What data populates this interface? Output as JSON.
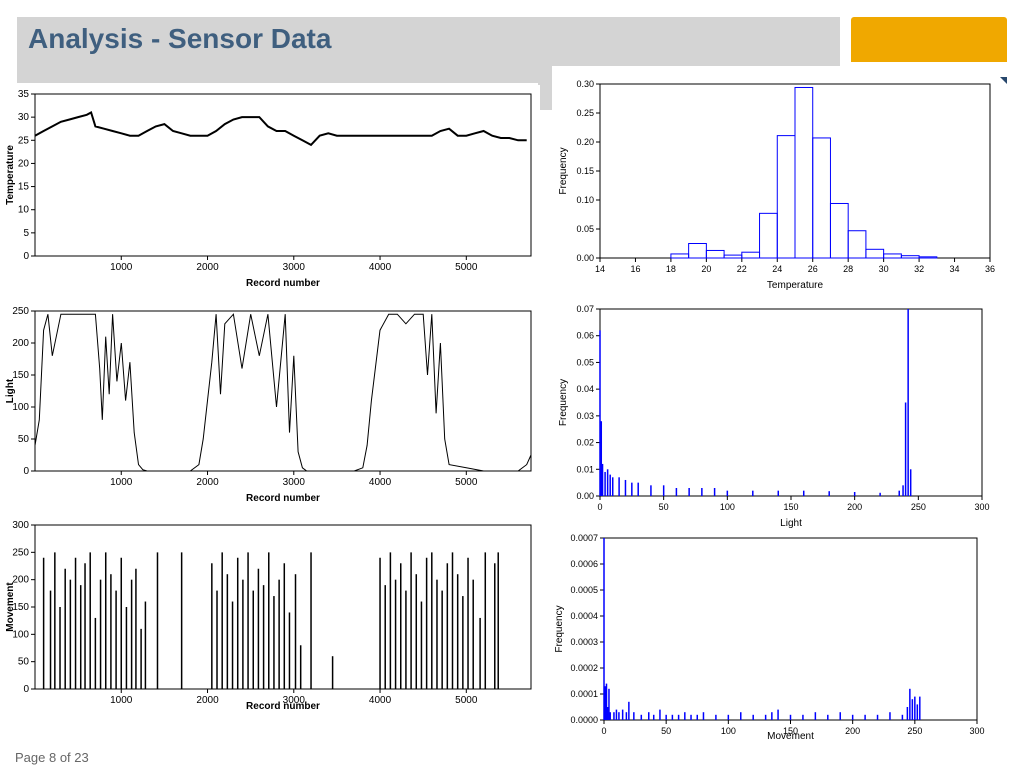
{
  "slide": {
    "title": "Analysis - Sensor Data",
    "footer": "Page 8 of 23",
    "accent_color": "#f0a800",
    "title_color": "#3f5f7f"
  },
  "chart_data": [
    {
      "type": "line",
      "xlabel": "Record number",
      "ylabel": "Temperature",
      "xlim": [
        0,
        5750
      ],
      "ylim": [
        0,
        35
      ],
      "xticks": [
        1000,
        2000,
        3000,
        4000,
        5000
      ],
      "yticks": [
        0,
        5,
        10,
        15,
        20,
        25,
        30,
        35
      ],
      "series": [
        {
          "color": "#000000",
          "x": [
            0,
            100,
            200,
            300,
            400,
            500,
            600,
            650,
            700,
            800,
            900,
            1000,
            1100,
            1200,
            1300,
            1400,
            1500,
            1600,
            1700,
            1800,
            1900,
            2000,
            2100,
            2200,
            2300,
            2400,
            2500,
            2600,
            2700,
            2800,
            2900,
            3000,
            3100,
            3200,
            3300,
            3400,
            3500,
            3600,
            3700,
            3800,
            3900,
            4000,
            4100,
            4200,
            4300,
            4400,
            4500,
            4600,
            4700,
            4800,
            4900,
            5000,
            5100,
            5200,
            5300,
            5400,
            5500,
            5600,
            5700
          ],
          "y": [
            26,
            27,
            28,
            29,
            29.5,
            30,
            30.5,
            31,
            28,
            27.5,
            27,
            26.5,
            26,
            26,
            27,
            28,
            28.5,
            27,
            26.5,
            26,
            26,
            26,
            27,
            28.5,
            29.5,
            30,
            30,
            30,
            28,
            27,
            27,
            26,
            25,
            24,
            26,
            26.5,
            26,
            26,
            26,
            26,
            26,
            26,
            26,
            26,
            26,
            26,
            26,
            26,
            27,
            27.5,
            26,
            26,
            26.5,
            27,
            26,
            25.5,
            25.5,
            25,
            25
          ]
        }
      ]
    },
    {
      "type": "bar",
      "xlabel": "Temperature",
      "ylabel": "Frequency",
      "xlim": [
        14,
        36
      ],
      "ylim": [
        0,
        0.3
      ],
      "xticks": [
        14,
        16,
        18,
        20,
        22,
        24,
        26,
        28,
        30,
        32,
        34,
        36
      ],
      "yticks": [
        0.0,
        0.05,
        0.1,
        0.15,
        0.2,
        0.25,
        0.3
      ],
      "bin_width": 1,
      "bin_starts": [
        18,
        19,
        20,
        21,
        22,
        23,
        24,
        25,
        26,
        27,
        28,
        29,
        30,
        31,
        32
      ],
      "values": [
        0.007,
        0.025,
        0.013,
        0.005,
        0.01,
        0.077,
        0.211,
        0.294,
        0.207,
        0.094,
        0.047,
        0.015,
        0.007,
        0.004,
        0.002
      ],
      "color": "#0000ff"
    },
    {
      "type": "line",
      "xlabel": "Record number",
      "ylabel": "Light",
      "xlim": [
        0,
        5750
      ],
      "ylim": [
        0,
        250
      ],
      "xticks": [
        1000,
        2000,
        3000,
        4000,
        5000
      ],
      "yticks": [
        0,
        50,
        100,
        150,
        200,
        250
      ],
      "series": [
        {
          "color": "#000000",
          "x": [
            0,
            50,
            100,
            150,
            200,
            300,
            400,
            500,
            600,
            700,
            750,
            780,
            820,
            860,
            900,
            950,
            1000,
            1050,
            1100,
            1150,
            1200,
            1250,
            1300,
            1400,
            1500,
            1600,
            1700,
            1800,
            1900,
            1950,
            2000,
            2050,
            2100,
            2150,
            2200,
            2300,
            2400,
            2500,
            2600,
            2700,
            2800,
            2900,
            2950,
            3000,
            3050,
            3100,
            3150,
            3200,
            3300,
            3400,
            3500,
            3600,
            3700,
            3800,
            3850,
            3900,
            4000,
            4100,
            4200,
            4300,
            4400,
            4500,
            4550,
            4600,
            4650,
            4700,
            4750,
            4800,
            5000,
            5200,
            5400,
            5600,
            5700,
            5750
          ],
          "y": [
            40,
            80,
            220,
            245,
            180,
            245,
            245,
            245,
            245,
            245,
            160,
            80,
            210,
            120,
            245,
            140,
            200,
            110,
            170,
            60,
            10,
            2,
            0,
            0,
            0,
            0,
            0,
            0,
            10,
            50,
            110,
            170,
            245,
            120,
            230,
            245,
            160,
            245,
            180,
            245,
            100,
            245,
            60,
            180,
            30,
            5,
            0,
            0,
            0,
            0,
            0,
            0,
            0,
            5,
            40,
            110,
            220,
            245,
            245,
            230,
            245,
            245,
            150,
            245,
            90,
            200,
            50,
            10,
            5,
            0,
            0,
            0,
            10,
            25
          ]
        }
      ]
    },
    {
      "type": "bar",
      "xlabel": "Light",
      "ylabel": "Frequency",
      "xlim": [
        0,
        300
      ],
      "ylim": [
        0,
        0.07
      ],
      "xticks": [
        0,
        50,
        100,
        150,
        200,
        250,
        300
      ],
      "yticks": [
        0.0,
        0.01,
        0.02,
        0.03,
        0.04,
        0.05,
        0.06,
        0.07
      ],
      "x": [
        0,
        1,
        2,
        4,
        6,
        8,
        10,
        15,
        20,
        25,
        30,
        40,
        50,
        60,
        70,
        80,
        90,
        100,
        120,
        140,
        160,
        180,
        200,
        220,
        235,
        238,
        240,
        242,
        244
      ],
      "values": [
        0.062,
        0.028,
        0.012,
        0.009,
        0.01,
        0.008,
        0.007,
        0.007,
        0.006,
        0.005,
        0.005,
        0.004,
        0.004,
        0.003,
        0.003,
        0.003,
        0.003,
        0.002,
        0.002,
        0.002,
        0.002,
        0.0018,
        0.0015,
        0.0012,
        0.002,
        0.004,
        0.035,
        0.07,
        0.01
      ],
      "color": "#0000ff"
    },
    {
      "type": "bar",
      "xlabel": "Record number",
      "ylabel": "Movement",
      "xlim": [
        0,
        5750
      ],
      "ylim": [
        0,
        300
      ],
      "xticks": [
        1000,
        2000,
        3000,
        4000,
        5000
      ],
      "yticks": [
        0,
        50,
        100,
        150,
        200,
        250,
        300
      ],
      "x": [
        100,
        180,
        230,
        290,
        350,
        410,
        470,
        530,
        580,
        640,
        700,
        760,
        820,
        880,
        940,
        1000,
        1060,
        1120,
        1170,
        1230,
        1280,
        1420,
        1700,
        2050,
        2110,
        2170,
        2230,
        2290,
        2350,
        2410,
        2470,
        2530,
        2590,
        2650,
        2710,
        2770,
        2830,
        2890,
        2950,
        3020,
        3080,
        3200,
        3450,
        4000,
        4060,
        4120,
        4180,
        4240,
        4300,
        4360,
        4420,
        4480,
        4540,
        4600,
        4660,
        4720,
        4780,
        4840,
        4900,
        4960,
        5020,
        5080,
        5160,
        5220,
        5330,
        5370
      ],
      "values": [
        240,
        180,
        250,
        150,
        220,
        200,
        240,
        190,
        230,
        250,
        130,
        200,
        250,
        210,
        180,
        240,
        150,
        200,
        220,
        110,
        160,
        250,
        250,
        230,
        180,
        250,
        210,
        160,
        240,
        200,
        250,
        180,
        220,
        190,
        250,
        170,
        200,
        230,
        140,
        210,
        80,
        250,
        60,
        240,
        190,
        250,
        200,
        230,
        180,
        250,
        210,
        160,
        240,
        250,
        200,
        180,
        230,
        250,
        210,
        170,
        240,
        200,
        130,
        250,
        230,
        250
      ],
      "color": "#000000"
    },
    {
      "type": "bar",
      "xlabel": "Movement",
      "ylabel": "Frequency",
      "xlim": [
        0,
        300
      ],
      "ylim": [
        0,
        0.0007
      ],
      "xticks": [
        0,
        50,
        100,
        150,
        200,
        250,
        300
      ],
      "yticks": [
        0.0,
        0.0001,
        0.0002,
        0.0003,
        0.0004,
        0.0005,
        0.0006,
        0.0007
      ],
      "x": [
        0,
        1,
        2,
        3,
        4,
        5,
        8,
        10,
        12,
        15,
        18,
        20,
        24,
        30,
        36,
        40,
        45,
        50,
        55,
        60,
        65,
        70,
        75,
        80,
        90,
        100,
        110,
        120,
        130,
        135,
        140,
        150,
        160,
        170,
        180,
        190,
        200,
        210,
        220,
        230,
        240,
        244,
        246,
        248,
        250,
        252,
        254
      ],
      "values": [
        0.0007,
        0.00013,
        0.00014,
        5e-05,
        0.00012,
        3e-05,
        3e-05,
        4e-05,
        3e-05,
        4e-05,
        3e-05,
        7e-05,
        3e-05,
        2e-05,
        3e-05,
        2e-05,
        4e-05,
        2e-05,
        2e-05,
        2e-05,
        3e-05,
        2e-05,
        2e-05,
        3e-05,
        2e-05,
        2e-05,
        3e-05,
        2e-05,
        2e-05,
        3e-05,
        4e-05,
        2e-05,
        2e-05,
        3e-05,
        2e-05,
        3e-05,
        2e-05,
        2e-05,
        2e-05,
        3e-05,
        2e-05,
        5e-05,
        0.00012,
        8e-05,
        9e-05,
        6e-05,
        9e-05
      ],
      "color": "#0000ff"
    }
  ]
}
